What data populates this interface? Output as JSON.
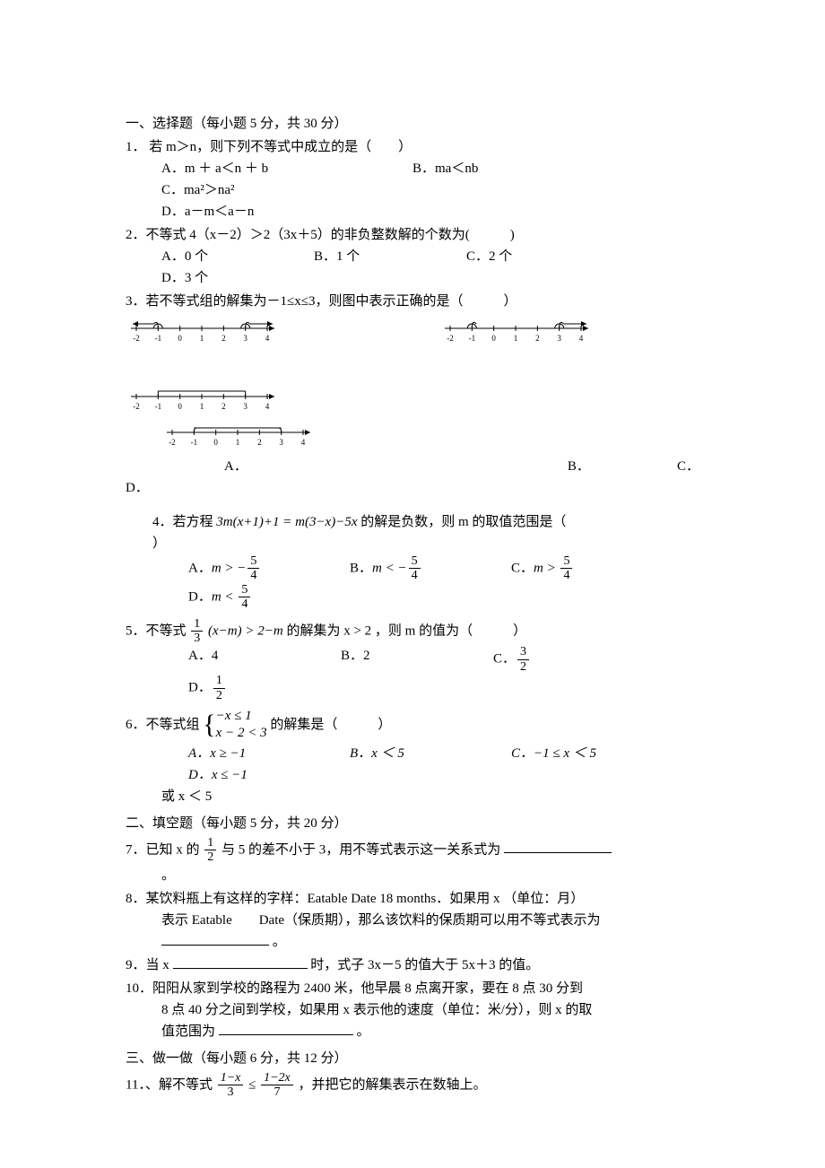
{
  "sections": {
    "s1": "一、选择题（每小题 5 分，共 30 分）",
    "s2": "二、填空题（每小题 5 分，共 20 分）",
    "s3": "三、做一做（每小题 6 分，共 12 分）"
  },
  "q1": {
    "stem": "1． 若 m＞n，则下列不等式中成立的是（　　）",
    "A": "A．m ＋ a＜n ＋ b",
    "B": "B．ma＜nb",
    "C": "C．ma²＞na²",
    "D": "D．a－m＜a－n"
  },
  "q2": {
    "stem": "2．不等式 4（x－2）＞2（3x＋5）的非负整数解的个数为(　　　)",
    "A": "A．0 个",
    "B": "B．1 个",
    "C": "C．2 个",
    "D": "D．3 个"
  },
  "q3": {
    "stem": "3．若不等式组的解集为－1≤x≤3，则图中表示正确的是（　　　）",
    "A": "A．",
    "B": "B．",
    "C": "C．",
    "Dlabel": "D．",
    "axis": {
      "ticks": [
        -2,
        -1,
        0,
        1,
        2,
        3,
        4
      ]
    }
  },
  "q4": {
    "stem_pre": "4．若方程 ",
    "stem_expr": "3m(x+1)+1 = m(3−x)−5x",
    "stem_post": " 的解是负数，则 m 的取值范围是（",
    "stem_post2": "）",
    "A_pre": "A．",
    "A_rel": "m > −",
    "A_num": "5",
    "A_den": "4",
    "B_pre": "B．",
    "B_rel": "m < −",
    "B_num": "5",
    "B_den": "4",
    "C_pre": "C．",
    "C_rel": "m > ",
    "C_num": "5",
    "C_den": "4",
    "D_pre": "D．",
    "D_rel": "m < ",
    "D_num": "5",
    "D_den": "4"
  },
  "q5": {
    "stem_pre": "5．不等式",
    "frac_num": "1",
    "frac_den": "3",
    "stem_mid1": "(x−m) > 2−m",
    "stem_mid2": " 的解集为 x > 2 ，则 m  的值为（　　　）",
    "A": "A．4",
    "B": "B．2",
    "C_pre": "C．",
    "C_num": "3",
    "C_den": "2",
    "D_pre": "D．",
    "D_num": "1",
    "D_den": "2"
  },
  "q6": {
    "stem_pre": "6．不等式组",
    "line1": "−x ≤ 1",
    "line2": "x − 2 < 3",
    "stem_post": " 的解集是（　　　）",
    "A": "A．x ≥ −1",
    "B": "B．x ＜ 5",
    "C": "C．−1 ≤ x ＜ 5",
    "D": "D．x ≤ −1",
    "tail": "或 x ＜ 5"
  },
  "q7": {
    "pre": "7．已知 x 的",
    "num": "1",
    "den": "2",
    "post": "与 5 的差不小于 3，用不等式表示这一关系式为",
    "end": "。"
  },
  "q8": {
    "line1": "8．某饮料瓶上有这样的字样：Eatable Date 18 months．如果用 x （单位：月）",
    "line2": "表示 Eatable　　Date（保质期），那么该饮料的保质期可以用不等式表示为",
    "end": "。"
  },
  "q9": {
    "pre": "9．当 x",
    "post": "时，式子 3x－5 的值大于 5x＋3 的值。"
  },
  "q10": {
    "line1": "10．阳阳从家到学校的路程为 2400 米，他早晨 8 点离开家，要在 8 点 30 分到",
    "line2": "8 点 40 分之间到学校，如果用 x 表示他的速度（单位：米/分），则 x 的取",
    "line3_pre": "值范围为",
    "end": "。"
  },
  "q11": {
    "pre": "11．、解不等式",
    "lnum": "1−x",
    "lden": "3",
    "rel": " ≤ ",
    "rnum": "1−2x",
    "rden": "7",
    "post": "，并把它的解集表示在数轴上。"
  },
  "numline_style": {
    "axis_color": "#000000",
    "tick_height": 5,
    "font_size": 9,
    "arrow_len": 8
  }
}
